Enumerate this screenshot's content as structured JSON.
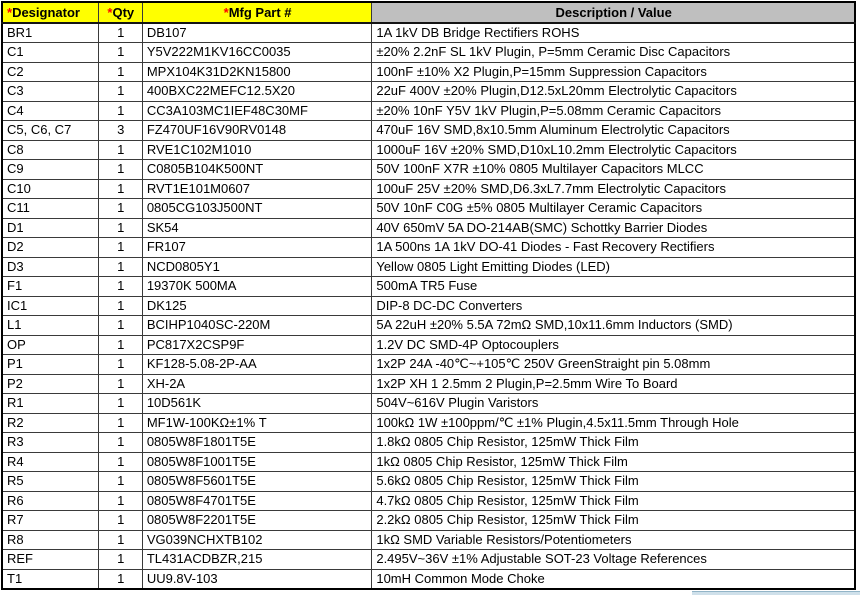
{
  "table": {
    "header": {
      "designator": {
        "asterisk": "*",
        "label": "Designator"
      },
      "qty": {
        "asterisk": "*",
        "label": "Qty"
      },
      "part": {
        "asterisk": "*",
        "label": "Mfg Part #"
      },
      "desc": {
        "label": "Description / Value"
      }
    },
    "rows": [
      {
        "designator": "BR1",
        "qty": "1",
        "part": "DB107",
        "desc": "1A 1kV DB Bridge Rectifiers ROHS"
      },
      {
        "designator": "C1",
        "qty": "1",
        "part": "Y5V222M1KV16CC0035",
        "desc": "±20% 2.2nF SL 1kV Plugin, P=5mm Ceramic Disc Capacitors"
      },
      {
        "designator": "C2",
        "qty": "1",
        "part": "MPX104K31D2KN15800",
        "desc": "100nF ±10% X2 Plugin,P=15mm Suppression Capacitors"
      },
      {
        "designator": "C3",
        "qty": "1",
        "part": "400BXC22MEFC12.5X20",
        "desc": "22uF 400V ±20% Plugin,D12.5xL20mm Electrolytic Capacitors"
      },
      {
        "designator": "C4",
        "qty": "1",
        "part": "CC3A103MC1IEF48C30MF",
        "desc": "±20% 10nF Y5V 1kV Plugin,P=5.08mm Ceramic Capacitors"
      },
      {
        "designator": "C5, C6, C7",
        "qty": "3",
        "part": "FZ470UF16V90RV0148",
        "desc": "470uF 16V SMD,8x10.5mm Aluminum Electrolytic Capacitors"
      },
      {
        "designator": "C8",
        "qty": "1",
        "part": "RVE1C102M1010",
        "desc": "1000uF 16V ±20% SMD,D10xL10.2mm Electrolytic Capacitors"
      },
      {
        "designator": "C9",
        "qty": "1",
        "part": "C0805B104K500NT",
        "desc": "50V 100nF X7R ±10% 0805 Multilayer Capacitors MLCC"
      },
      {
        "designator": "C10",
        "qty": "1",
        "part": "RVT1E101M0607",
        "desc": "100uF 25V ±20% SMD,D6.3xL7.7mm Electrolytic Capacitors"
      },
      {
        "designator": "C11",
        "qty": "1",
        "part": "0805CG103J500NT",
        "desc": "50V 10nF C0G ±5% 0805 Multilayer Ceramic Capacitors"
      },
      {
        "designator": "D1",
        "qty": "1",
        "part": "SK54",
        "desc": "40V 650mV 5A DO-214AB(SMC) Schottky Barrier Diodes"
      },
      {
        "designator": "D2",
        "qty": "1",
        "part": "FR107",
        "desc": "1A 500ns 1A 1kV DO-41 Diodes - Fast Recovery Rectifiers"
      },
      {
        "designator": "D3",
        "qty": "1",
        "part": "NCD0805Y1",
        "desc": "Yellow 0805 Light Emitting Diodes (LED)"
      },
      {
        "designator": "F1",
        "qty": "1",
        "part": "19370K 500MA",
        "desc": "500mA TR5 Fuse"
      },
      {
        "designator": "IC1",
        "qty": "1",
        "part": "DK125",
        "desc": "DIP-8 DC-DC Converters"
      },
      {
        "designator": "L1",
        "qty": "1",
        "part": "BCIHP1040SC-220M",
        "desc": "5A 22uH ±20% 5.5A 72mΩ SMD,10x11.6mm Inductors (SMD)"
      },
      {
        "designator": "OP",
        "qty": "1",
        "part": "PC817X2CSP9F",
        "desc": "1.2V DC SMD-4P Optocouplers"
      },
      {
        "designator": "P1",
        "qty": "1",
        "part": "KF128-5.08-2P-AA",
        "desc": "1x2P 24A -40℃~+105℃ 250V GreenStraight pin 5.08mm"
      },
      {
        "designator": "P2",
        "qty": "1",
        "part": "XH-2A",
        "desc": "1x2P XH 1 2.5mm 2 Plugin,P=2.5mm Wire To Board"
      },
      {
        "designator": "R1",
        "qty": "1",
        "part": "10D561K",
        "desc": "504V~616V Plugin Varistors"
      },
      {
        "designator": "R2",
        "qty": "1",
        "part": "MF1W-100KΩ±1% T",
        "desc": "100kΩ 1W ±100ppm/℃ ±1% Plugin,4.5x11.5mm Through Hole"
      },
      {
        "designator": "R3",
        "qty": "1",
        "part": "0805W8F1801T5E",
        "desc": "1.8kΩ 0805 Chip Resistor, 125mW Thick Film"
      },
      {
        "designator": "R4",
        "qty": "1",
        "part": "0805W8F1001T5E",
        "desc": "1kΩ 0805 Chip Resistor, 125mW Thick Film"
      },
      {
        "designator": "R5",
        "qty": "1",
        "part": "0805W8F5601T5E",
        "desc": "5.6kΩ 0805 Chip Resistor, 125mW Thick Film"
      },
      {
        "designator": "R6",
        "qty": "1",
        "part": "0805W8F4701T5E",
        "desc": "4.7kΩ 0805 Chip Resistor, 125mW Thick Film"
      },
      {
        "designator": "R7",
        "qty": "1",
        "part": "0805W8F2201T5E",
        "desc": "2.2kΩ 0805 Chip Resistor, 125mW Thick Film"
      },
      {
        "designator": "R8",
        "qty": "1",
        "part": "VG039NCHXTB102",
        "desc": "1kΩ SMD Variable Resistors/Potentiometers"
      },
      {
        "designator": "REF",
        "qty": "1",
        "part": "TL431ACDBZR,215",
        "desc": "2.495V~36V ±1%  Adjustable SOT-23 Voltage References"
      },
      {
        "designator": "T1",
        "qty": "1",
        "part": "UU9.8V-103",
        "desc": "10mH Common Mode Choke"
      }
    ]
  },
  "colors": {
    "header_yellow": "#ffff00",
    "header_gray": "#bfbfbf",
    "asterisk_red": "#ff0000",
    "grid_line": "#3a3a3a",
    "outer_border": "#000000",
    "scroll_strip": "#cfe0ea"
  }
}
